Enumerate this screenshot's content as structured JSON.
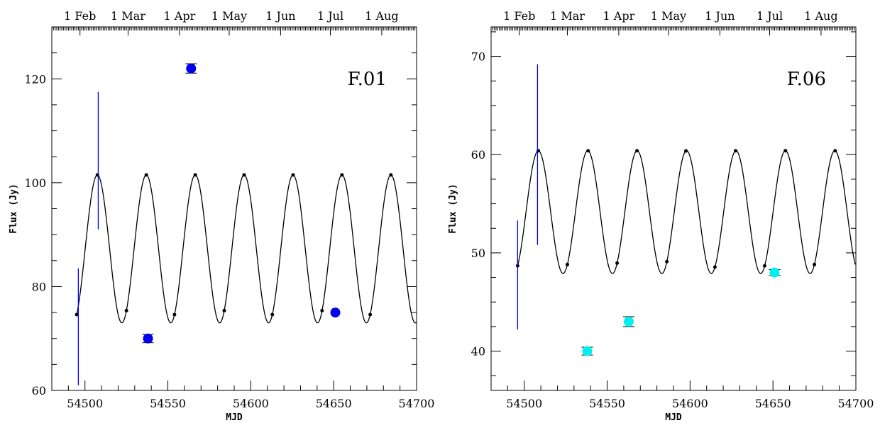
{
  "chart_data": [
    {
      "type": "scatter",
      "panel_label": "F.01",
      "xlabel": "MJD",
      "ylabel": "Flux (Jy)",
      "xlim": [
        54480,
        54700
      ],
      "ylim": [
        60,
        130
      ],
      "xticks": [
        54500,
        54550,
        54600,
        54650,
        54700
      ],
      "yticks": [
        60,
        80,
        100,
        120
      ],
      "top_axis_dates": [
        "1 Feb",
        "1 Mar",
        "1 Apr",
        "1 May",
        "1 Jun",
        "1 Jul",
        "1 Aug"
      ],
      "top_axis_mjd": [
        54497,
        54526,
        54557,
        54587,
        54618,
        54648,
        54679
      ],
      "model_curve": {
        "period": 29.5,
        "phase_zero": 54507.5,
        "max": 101.5,
        "min": 73.0,
        "markers_x": [
          54495,
          54507.5,
          54525,
          54537,
          54554,
          54566.5,
          54584,
          54596,
          54613,
          54625.5,
          54643,
          54655,
          54672,
          54684.5
        ]
      },
      "measurements": [
        {
          "x": 54538,
          "y": 70.0,
          "err": 0.8,
          "color": "#0000ee"
        },
        {
          "x": 54564,
          "y": 122.0,
          "err": 0.9,
          "color": "#0000ee"
        },
        {
          "x": 54651,
          "y": 75.0,
          "err": 0,
          "color": "#0000ee"
        }
      ],
      "vertical_bars": [
        {
          "x": 54496,
          "y_low": 61.0,
          "y_high": 83.5,
          "color": "#0000ee"
        },
        {
          "x": 54508,
          "y_low": 91.0,
          "y_high": 117.5,
          "color": "#0000ee"
        }
      ]
    },
    {
      "type": "scatter",
      "panel_label": "F.06",
      "xlabel": "MJD",
      "ylabel": "Flux (Jy)",
      "xlim": [
        54480,
        54700
      ],
      "ylim": [
        36,
        73
      ],
      "xticks": [
        54500,
        54550,
        54600,
        54650,
        54700
      ],
      "yticks": [
        40,
        50,
        60,
        70
      ],
      "top_axis_dates": [
        "1 Feb",
        "1 Mar",
        "1 Apr",
        "1 May",
        "1 Jun",
        "1 Jul",
        "1 Aug"
      ],
      "top_axis_mjd": [
        54497,
        54526,
        54557,
        54587,
        54618,
        54648,
        54679
      ],
      "model_curve": {
        "period": 29.8,
        "phase_zero": 54508.5,
        "max": 60.4,
        "min": 47.9,
        "markers_x": [
          54496,
          54508.5,
          54526,
          54538.5,
          54556,
          54568,
          54586,
          54597.5,
          54615,
          54627.5,
          54645,
          54657.5,
          54675,
          54687.5
        ]
      },
      "measurements": [
        {
          "x": 54538,
          "y": 40.0,
          "err": 0.4,
          "color": "#00f0f0"
        },
        {
          "x": 54563,
          "y": 43.0,
          "err": 0.5,
          "color": "#00f0f0"
        },
        {
          "x": 54651,
          "y": 48.0,
          "err": 0.3,
          "color": "#00f0f0"
        }
      ],
      "vertical_bars": [
        {
          "x": 54496,
          "y_low": 42.2,
          "y_high": 53.3,
          "color": "#0000ee"
        },
        {
          "x": 54508,
          "y_low": 50.8,
          "y_high": 69.2,
          "color": "#0000ee"
        }
      ]
    }
  ]
}
